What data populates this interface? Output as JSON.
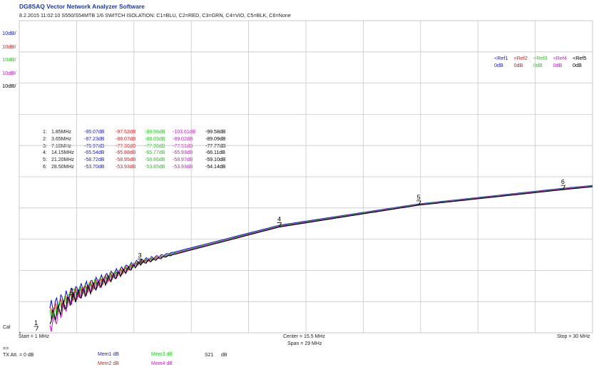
{
  "window": {
    "app_title": "DG8SAQ Vector Network Analyzer Software",
    "subtitle": "8.2.2015   11:02:10    S550/S54MTB 1/6 SWITCH  ISOLATION: C1=BLU, C2=RED, C3=GRN, C4=VIO, C5=BLK, C6=None"
  },
  "colors": {
    "c1": "#1a1acc",
    "c2": "#e01818",
    "c3": "#20c820",
    "c4": "#c020c0",
    "c5": "#000000",
    "grid": "#c8c8c8",
    "app_title": "#1a3aa8"
  },
  "scale_labels": [
    {
      "text": "10dB/",
      "color": "#1a1acc"
    },
    {
      "text": "10dB/",
      "color": "#e01818"
    },
    {
      "text": "10dB/",
      "color": "#20c820"
    },
    {
      "text": "10dB/",
      "color": "#c020c0"
    },
    {
      "text": "10dB/",
      "color": "#000000"
    }
  ],
  "refs": [
    {
      "label": "<Ref1",
      "value": "0dB",
      "color": "#1a1acc"
    },
    {
      "label": "<Ref2",
      "value": "0dB",
      "color": "#e01818"
    },
    {
      "label": "<Ref3",
      "value": "0dB",
      "color": "#20c820"
    },
    {
      "label": "<Ref4",
      "value": "0dB",
      "color": "#c020c0"
    },
    {
      "label": "<Ref5",
      "value": "0dB",
      "color": "#000000"
    }
  ],
  "marker_table": [
    {
      "index": "1:",
      "freq": "1.85MHz",
      "c1": "-95.07dB",
      "c2": "-97.52dB",
      "c3": "-98.96dB",
      "c4": "-103.61dB",
      "c5": "-99.58dB"
    },
    {
      "index": "2:",
      "freq": "3.65MHz",
      "c1": "-87.23dB",
      "c2": "-88.07dB",
      "c3": "-88.05dB",
      "c4": "-89.02dB",
      "c5": "-89.09dB"
    },
    {
      "index": "3:",
      "freq": "7.10MHz",
      "c1": "-76.97dB",
      "c2": "-77.36dB",
      "c3": "-77.36dB",
      "c4": "-77.51dB",
      "c5": "-77.77dB"
    },
    {
      "index": "4:",
      "freq": "14.15MHz",
      "c1": "-65.54dB",
      "c2": "-65.88dB",
      "c3": "-65.77dB",
      "c4": "-65.93dB",
      "c5": "-66.11dB"
    },
    {
      "index": "5:",
      "freq": "21.20MHz",
      "c1": "-58.72dB",
      "c2": "-58.95dB",
      "c3": "-58.86dB",
      "c4": "-58.97dB",
      "c5": "-59.10dB"
    },
    {
      "index": "6:",
      "freq": "28.50MHz",
      "c1": "-53.70dB",
      "c2": "-53.93dB",
      "c3": "-53.85dB",
      "c4": "-53.93dB",
      "c5": "-54.14dB"
    }
  ],
  "bottom": {
    "cal": "Cal",
    "start": "Start = 1 MHz",
    "center": "Center = 15.5 MHz",
    "span": "Span = 29 MHz",
    "stop": "Stop = 30 MHz",
    "arrow": "=>",
    "tx_att": "TX Att. = 0 dB",
    "s21": "S21",
    "s21_unit": "dB"
  },
  "mems": [
    {
      "text": "Mem1 dB",
      "color": "#1a1acc"
    },
    {
      "text": "Mem2 dB",
      "color": "#e01818"
    },
    {
      "text": "Mem3 dB",
      "color": "#20c820"
    },
    {
      "text": "Mem4 dB",
      "color": "#c020c0"
    }
  ],
  "chart_data": {
    "type": "line",
    "title": "",
    "xlabel": "",
    "ylabel": "",
    "xlim": [
      1,
      30
    ],
    "ylim": [
      -100,
      0
    ],
    "x_unit": "MHz",
    "y_unit": "dB",
    "grid": true,
    "x": [
      1.0,
      1.85,
      3.65,
      7.1,
      14.15,
      21.2,
      28.5,
      30.0
    ],
    "series": [
      {
        "color": "#1a1acc",
        "values": [
          -100,
          -95.07,
          -87.23,
          -76.97,
          -65.54,
          -58.72,
          -53.7,
          -52.8
        ]
      },
      {
        "color": "#e01818",
        "values": [
          -100,
          -97.52,
          -88.07,
          -77.36,
          -65.88,
          -58.95,
          -53.93,
          -53.0
        ]
      },
      {
        "color": "#20c820",
        "values": [
          -100,
          -98.96,
          -88.05,
          -77.36,
          -65.77,
          -58.86,
          -53.85,
          -52.9
        ]
      },
      {
        "color": "#c020c0",
        "values": [
          -100,
          -103.61,
          -89.02,
          -77.51,
          -65.93,
          -58.97,
          -53.93,
          -53.0
        ]
      },
      {
        "color": "#000000",
        "values": [
          -100,
          -99.58,
          -89.09,
          -77.77,
          -66.11,
          -59.1,
          -54.14,
          -53.2
        ]
      }
    ],
    "markers": [
      {
        "label": "1",
        "x": 1.85
      },
      {
        "label": "2",
        "x": 3.65
      },
      {
        "label": "3",
        "x": 7.1
      },
      {
        "label": "4",
        "x": 14.15
      },
      {
        "label": "5",
        "x": 21.2
      },
      {
        "label": "6",
        "x": 28.5
      }
    ]
  }
}
